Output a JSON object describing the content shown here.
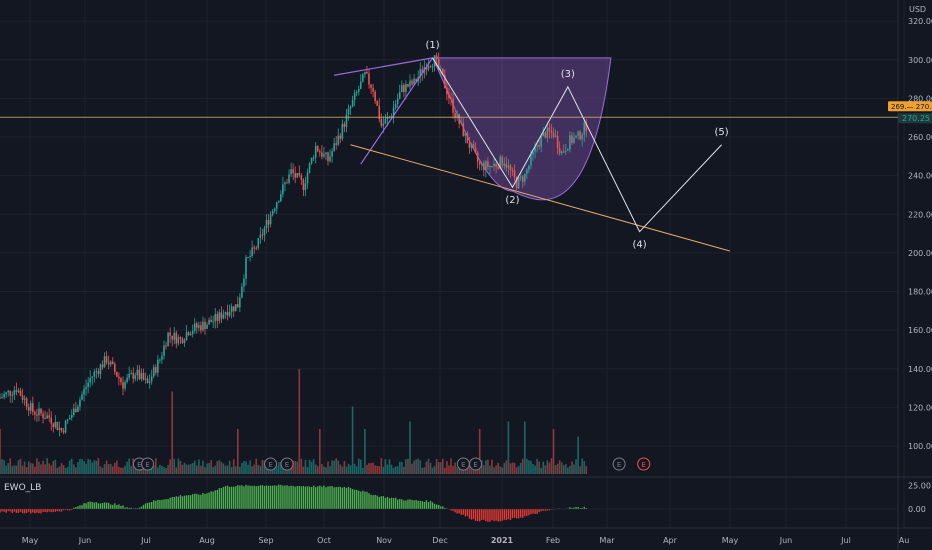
{
  "chart_data": {
    "type": "candlestick",
    "title": "",
    "currency": "USD",
    "price_axis": {
      "ylim": [
        86,
        328
      ],
      "ticks": [
        100,
        120,
        140,
        160,
        180,
        200,
        220,
        240,
        260,
        280,
        300,
        320
      ],
      "tick_labels": [
        "100.00",
        "120.00",
        "140.00",
        "160.00",
        "180.00",
        "200.00",
        "220.00",
        "240.00",
        "260.00",
        "280.00",
        "300.00",
        "320.00"
      ]
    },
    "time_axis": {
      "labels": [
        "May",
        "Jun",
        "Jul",
        "Aug",
        "Sep",
        "Oct",
        "Nov",
        "Dec",
        "2021",
        "Feb",
        "Mar",
        "Apr",
        "May",
        "Jun",
        "Jul",
        "Au"
      ]
    },
    "last_price": {
      "value": 270.25,
      "label": "270.25",
      "tag_label": "269.— 270.",
      "line_color": "#d4b06a",
      "tag_color": "#f0a030"
    },
    "price_keyframes": [
      [
        0,
        125
      ],
      [
        8,
        130
      ],
      [
        16,
        118
      ],
      [
        24,
        115
      ],
      [
        30,
        108
      ],
      [
        36,
        118
      ],
      [
        44,
        135
      ],
      [
        52,
        145
      ],
      [
        60,
        132
      ],
      [
        66,
        138
      ],
      [
        72,
        132
      ],
      [
        78,
        145
      ],
      [
        82,
        158
      ],
      [
        88,
        155
      ],
      [
        92,
        160
      ],
      [
        100,
        163
      ],
      [
        106,
        166
      ],
      [
        110,
        170
      ],
      [
        116,
        173
      ],
      [
        120,
        195
      ],
      [
        126,
        205
      ],
      [
        134,
        225
      ],
      [
        142,
        242
      ],
      [
        148,
        235
      ],
      [
        154,
        255
      ],
      [
        160,
        248
      ],
      [
        166,
        262
      ],
      [
        172,
        278
      ],
      [
        178,
        292
      ],
      [
        182,
        285
      ],
      [
        186,
        266
      ],
      [
        190,
        270
      ],
      [
        196,
        285
      ],
      [
        202,
        288
      ],
      [
        208,
        298
      ],
      [
        212,
        300
      ],
      [
        216,
        290
      ],
      [
        222,
        272
      ],
      [
        228,
        258
      ],
      [
        234,
        245
      ],
      [
        240,
        245
      ],
      [
        246,
        248
      ],
      [
        252,
        236
      ],
      [
        256,
        240
      ],
      [
        262,
        256
      ],
      [
        266,
        262
      ],
      [
        270,
        262
      ],
      [
        274,
        252
      ],
      [
        278,
        258
      ],
      [
        282,
        260
      ],
      [
        286,
        266
      ]
    ],
    "volume": {
      "spikes": [
        [
          0,
          0.3
        ],
        [
          84,
          0.55
        ],
        [
          116,
          0.3
        ],
        [
          146,
          0.7
        ],
        [
          156,
          0.3
        ],
        [
          172,
          0.45
        ],
        [
          178,
          0.3
        ],
        [
          200,
          0.35
        ],
        [
          234,
          0.3
        ],
        [
          248,
          0.35
        ],
        [
          256,
          0.35
        ],
        [
          270,
          0.3
        ],
        [
          282,
          0.25
        ]
      ]
    },
    "oscillator": {
      "name": "EWO_LB",
      "ylim": [
        -10,
        30
      ],
      "ticks": [
        25,
        0
      ],
      "tick_labels": [
        "25.00",
        "0.00"
      ]
    },
    "annotations": {
      "wave_labels": [
        "(1)",
        "(2)",
        "(3)",
        "(4)",
        "(5)"
      ],
      "wave_path": [
        [
          211,
          301
        ],
        [
          250,
          234
        ],
        [
          277,
          286
        ],
        [
          312,
          211
        ],
        [
          352,
          256
        ]
      ],
      "cup_top": [
        [
          211,
          301
        ],
        [
          298,
          301
        ]
      ],
      "upper_trendline": [
        [
          163,
          292
        ],
        [
          211,
          301
        ]
      ],
      "lower_trendline": [
        [
          171,
          256
        ],
        [
          356,
          201
        ]
      ],
      "wedge_line": [
        [
          176,
          246
        ],
        [
          211,
          301
        ]
      ],
      "event_markers": [
        "E",
        "E",
        "E",
        "E",
        "E",
        "E",
        "E",
        "E"
      ]
    },
    "colors": {
      "up": "#26a69a",
      "down": "#ef5350",
      "background": "#131722",
      "cup_fill": "#7b4fa8",
      "osc_up": "#4caf50",
      "osc_down": "#e53935",
      "wave": "#e0e3eb",
      "trend": "#e3a96a",
      "purple_line": "#9c6ade"
    }
  }
}
